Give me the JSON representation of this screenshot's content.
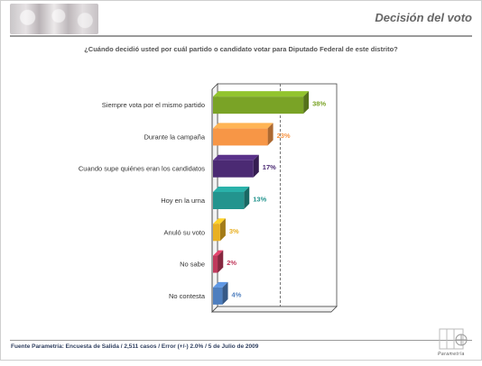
{
  "header": {
    "title": "Decisión del voto"
  },
  "question": "¿Cuándo decidió usted por cuál partido o candidato votar para Diputado Federal de este distrito?",
  "footer": {
    "source": "Fuente Parametría: Encuesta de Salida / 2,511 casos / Error (+/-) 2.0% / 5 de Julio de 2009"
  },
  "logo": {
    "text": "Parametría"
  },
  "chart_data": {
    "type": "bar",
    "orientation": "horizontal",
    "categories": [
      "Siempre vota por el mismo partido",
      "Durante la campaña",
      "Cuando supe quiénes eran los candidatos",
      "Hoy en la urna",
      "Anuló su voto",
      "No sabe",
      "No contesta"
    ],
    "values": [
      38,
      23,
      17,
      13,
      3,
      2,
      4
    ],
    "value_labels": [
      "38%",
      "23%",
      "17%",
      "13%",
      "3%",
      "2%",
      "4%"
    ],
    "colors": [
      "#7aa326",
      "#f79646",
      "#4b2a73",
      "#23948e",
      "#e9b022",
      "#c0395c",
      "#4f7fbf"
    ],
    "xlim": [
      0,
      52
    ],
    "reference_line": {
      "value": 26,
      "style": "dashed"
    },
    "grid": false,
    "legend": "none"
  }
}
